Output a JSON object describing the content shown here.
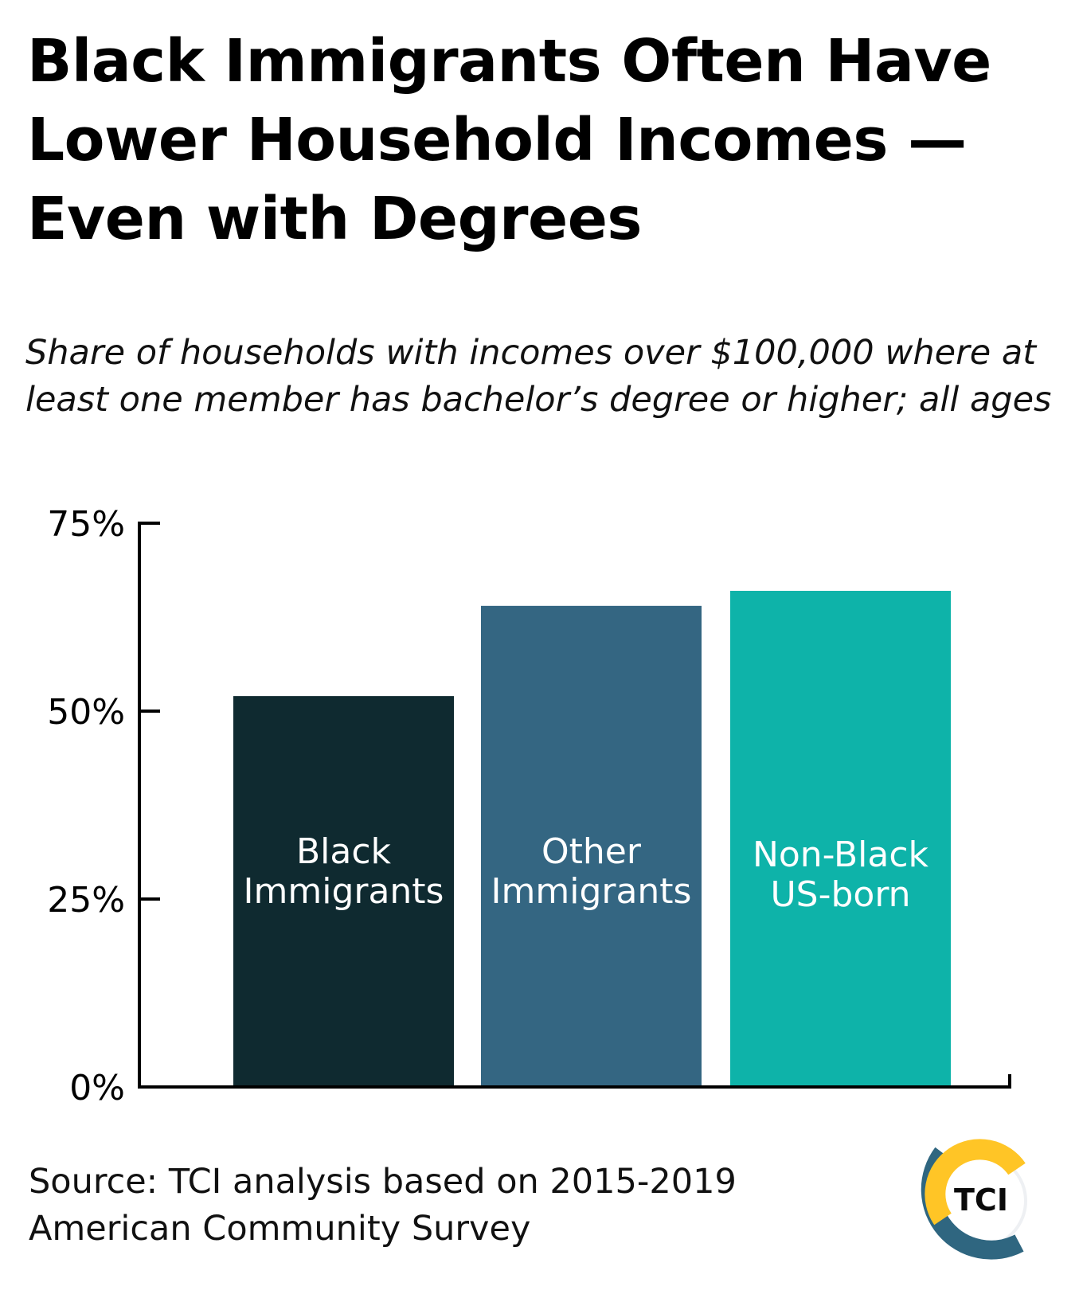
{
  "title": "Black Immigrants Often Have Lower Household Incomes — Even with Degrees",
  "subtitle": "Share of households with incomes over $100,000 where at least one member has bachelor’s degree or higher; all ages",
  "source": "Source: TCI analysis based on 2015-2019 American Community Survey",
  "logo_text": "TCI",
  "colors": {
    "logo_yellow": "#FFC526",
    "logo_blue": "#2F6680"
  },
  "chart_data": {
    "type": "bar",
    "categories": [
      [
        "Black",
        "Immigrants"
      ],
      [
        "Other",
        "Immigrants"
      ],
      [
        "Non-Black",
        "US-born"
      ]
    ],
    "values": [
      52,
      64,
      66
    ],
    "colors": [
      "#0F2A30",
      "#346682",
      "#0EB3A9"
    ],
    "ylim": [
      0,
      75
    ],
    "yticks": [
      0,
      25,
      50,
      75
    ],
    "ytick_labels": [
      "0%",
      "25%",
      "50%",
      "75%"
    ],
    "grid": false,
    "category_labels_inside_bars": true
  }
}
